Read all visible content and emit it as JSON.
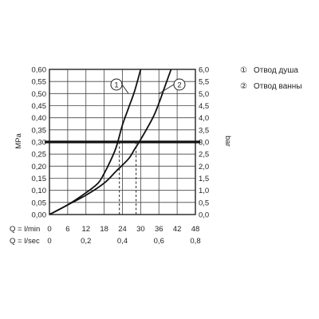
{
  "chart_data": {
    "type": "line",
    "title": "",
    "left_axis": {
      "label": "MPa",
      "range": [
        0,
        0.6
      ],
      "ticks": [
        "0,00",
        "0,05",
        "0,10",
        "0,15",
        "0,20",
        "0,25",
        "0,30",
        "0,35",
        "0,40",
        "0,45",
        "0,50",
        "0,55",
        "0,60"
      ]
    },
    "right_axis": {
      "label": "bar",
      "range": [
        0,
        6
      ],
      "ticks": [
        "0,0",
        "0,5",
        "1,0",
        "1,5",
        "2,0",
        "2,5",
        "3,0",
        "3,5",
        "4,0",
        "4,5",
        "5,0",
        "5,5",
        "6,0"
      ]
    },
    "x_axis_lmin": {
      "label": "Q = l/min",
      "range": [
        0,
        48
      ],
      "ticks": [
        "0",
        "6",
        "12",
        "18",
        "24",
        "30",
        "36",
        "42",
        "48"
      ]
    },
    "x_axis_lsec": {
      "label": "Q = l/sec",
      "ticks": [
        "0",
        "0,2",
        "0,4",
        "0,6",
        "0,8"
      ]
    },
    "grid": true,
    "reference_line": {
      "y": 0.3
    },
    "series": [
      {
        "id": "1",
        "x": [
          0,
          6,
          12,
          16,
          18,
          20,
          22,
          24,
          26,
          28,
          30
        ],
        "y": [
          0.0,
          0.04,
          0.09,
          0.13,
          0.17,
          0.22,
          0.28,
          0.37,
          0.44,
          0.51,
          0.6
        ]
      },
      {
        "id": "2",
        "x": [
          0,
          6,
          12,
          18,
          22,
          26,
          28,
          30,
          34,
          36,
          38,
          40
        ],
        "y": [
          0.0,
          0.04,
          0.08,
          0.13,
          0.18,
          0.23,
          0.27,
          0.31,
          0.4,
          0.46,
          0.53,
          0.6
        ]
      }
    ],
    "dashed_markers": [
      {
        "series": "1",
        "x": 23,
        "y": 0.3
      },
      {
        "series": "2",
        "x": 28.5,
        "y": 0.3
      }
    ],
    "legend": [
      {
        "symbol": "①",
        "text": "Отвод душа"
      },
      {
        "symbol": "②",
        "text": "Отвод ванны"
      }
    ]
  }
}
